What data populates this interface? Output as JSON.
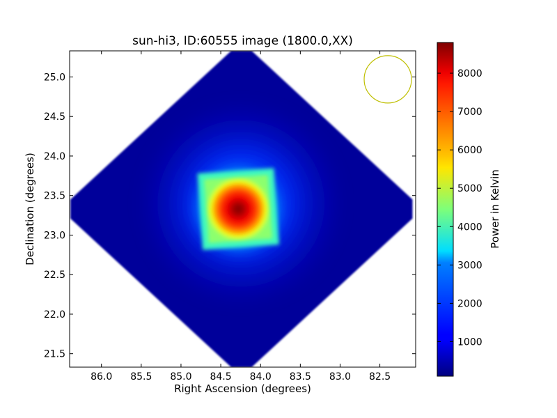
{
  "chart_data": {
    "type": "heatmap",
    "title": "sun-hi3, ID:60555 image (1800.0,XX)",
    "xlabel": "Right Ascension (degrees)",
    "ylabel": "Declination (degrees)",
    "xlim": [
      86.4,
      82.05
    ],
    "ylim": [
      21.33,
      25.33
    ],
    "xticks": [
      86.0,
      85.5,
      85.0,
      84.5,
      84.0,
      83.5,
      83.0,
      82.5
    ],
    "xtick_labels": [
      "86.0",
      "85.5",
      "85.0",
      "84.5",
      "84.0",
      "83.5",
      "83.0",
      "82.5"
    ],
    "yticks": [
      21.5,
      22.0,
      22.5,
      23.0,
      23.5,
      24.0,
      24.5,
      25.0
    ],
    "ytick_labels": [
      "21.5",
      "22.0",
      "22.5",
      "23.0",
      "23.5",
      "24.0",
      "24.5",
      "25.0"
    ],
    "colormap": "jet",
    "grid": false,
    "colorbar": {
      "label": "Power in Kelvin",
      "range": [
        100,
        8800
      ],
      "ticks": [
        1000,
        2000,
        3000,
        4000,
        5000,
        6000,
        7000,
        8000
      ],
      "tick_labels": [
        "1000",
        "2000",
        "3000",
        "4000",
        "5000",
        "6000",
        "7000",
        "8000"
      ]
    },
    "map_region": {
      "shape": "diamond",
      "center_ra": 84.24,
      "center_dec": 23.33,
      "ra_half_width": 2.15,
      "dec_half_height": 2.0,
      "background_value": 150
    },
    "hot_region": {
      "shape": "rotated square",
      "center_ra": 84.28,
      "center_dec": 23.33,
      "peak_value": 8800,
      "edge_value": 4200
    },
    "beam_marker": {
      "shape": "circle",
      "center_ra": 82.4,
      "center_dec": 24.97,
      "color": "#bfbf00"
    }
  }
}
